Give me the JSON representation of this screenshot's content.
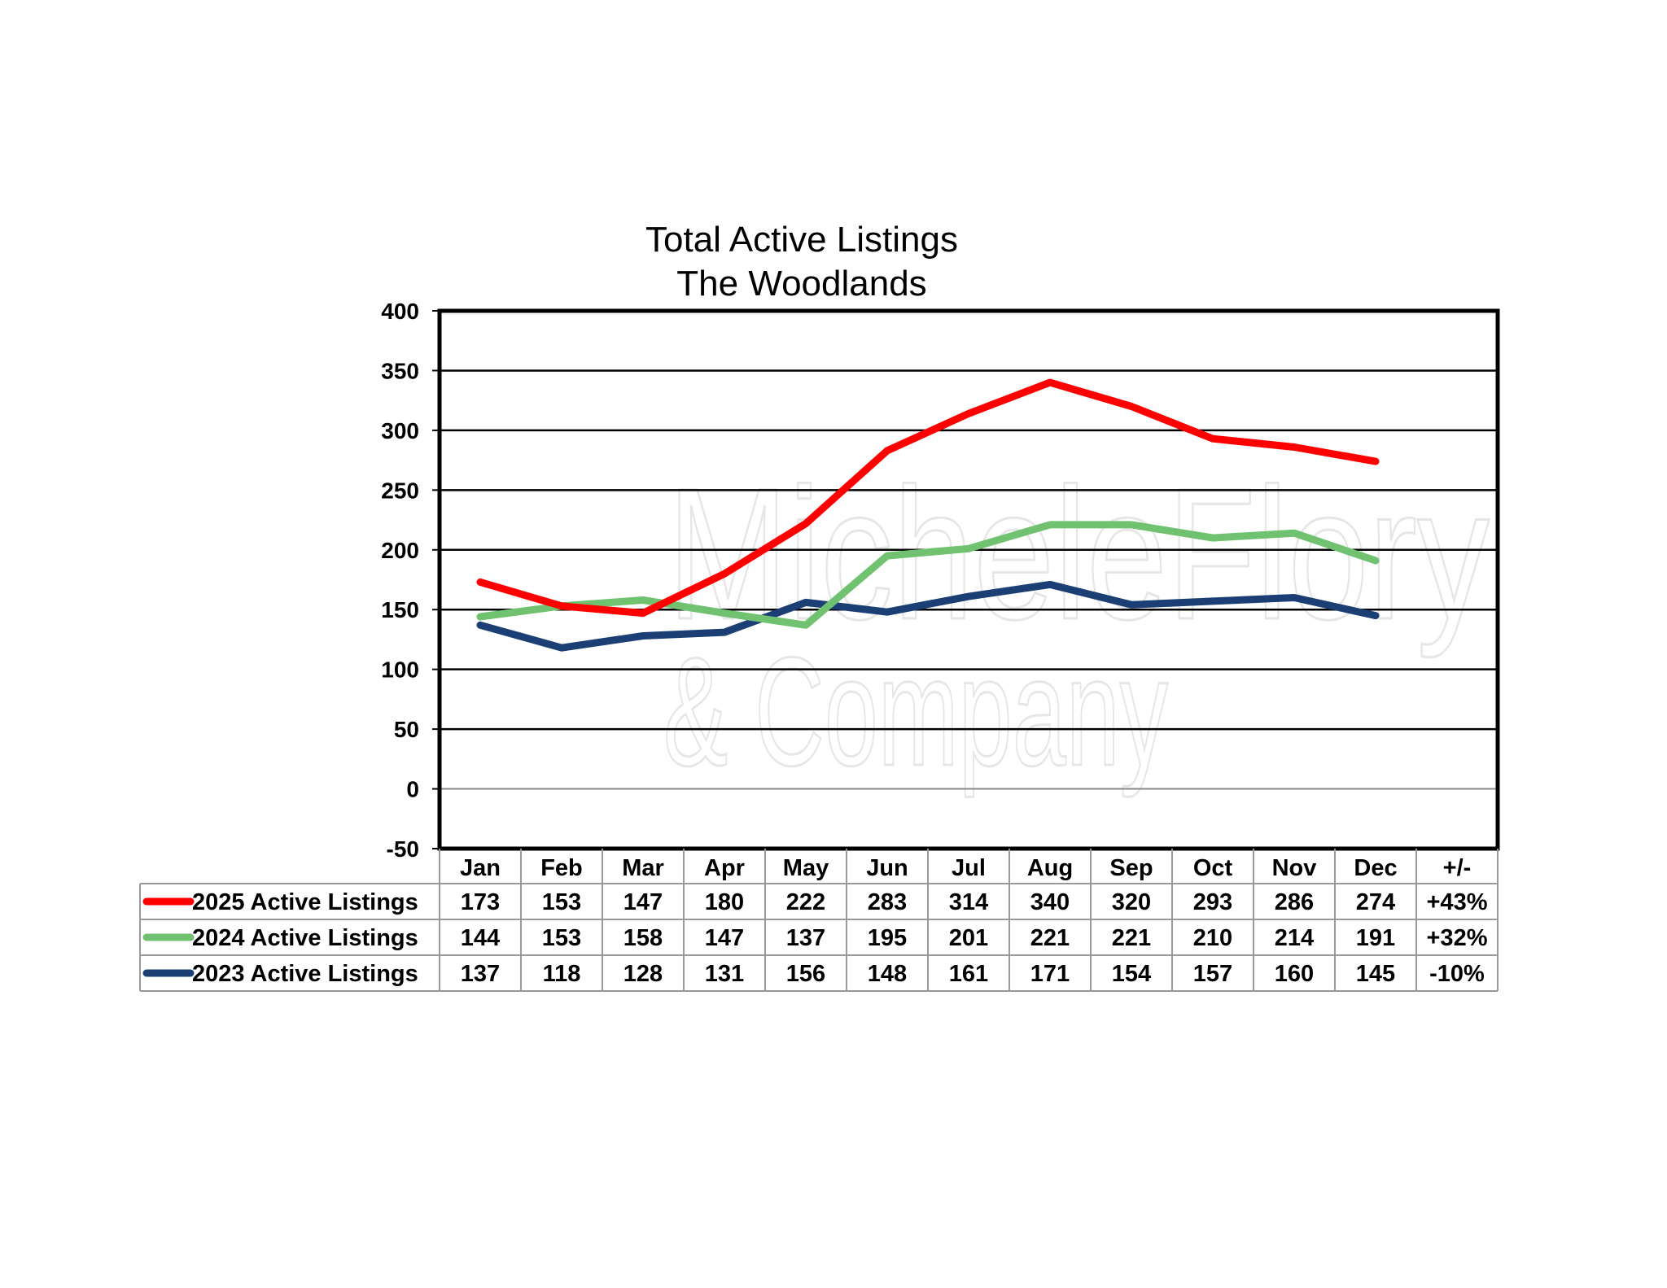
{
  "chart_data": {
    "type": "line",
    "title": "Total Active Listings",
    "subtitle": "The Woodlands",
    "watermark": [
      "MicheleFlory",
      "& Company"
    ],
    "categories": [
      "Jan",
      "Feb",
      "Mar",
      "Apr",
      "May",
      "Jun",
      "Jul",
      "Aug",
      "Sep",
      "Oct",
      "Nov",
      "Dec"
    ],
    "ylim": [
      -50,
      400
    ],
    "yticks": [
      400,
      350,
      300,
      250,
      200,
      150,
      100,
      50,
      0,
      -50
    ],
    "grid": true,
    "legend": "data table below plot",
    "change_header": "+/-",
    "series": [
      {
        "name": "2025 Active Listings",
        "color": "#ff0000",
        "values": [
          173,
          153,
          147,
          180,
          222,
          283,
          314,
          340,
          320,
          293,
          286,
          274
        ],
        "change": "+43%"
      },
      {
        "name": "2024 Active Listings",
        "color": "#70c270",
        "values": [
          144,
          153,
          158,
          147,
          137,
          195,
          201,
          221,
          221,
          210,
          214,
          191
        ],
        "change": "+32%"
      },
      {
        "name": "2023 Active Listings",
        "color": "#1b3f75",
        "values": [
          137,
          118,
          128,
          131,
          156,
          148,
          161,
          171,
          154,
          157,
          160,
          145
        ],
        "change": "-10%"
      }
    ]
  }
}
